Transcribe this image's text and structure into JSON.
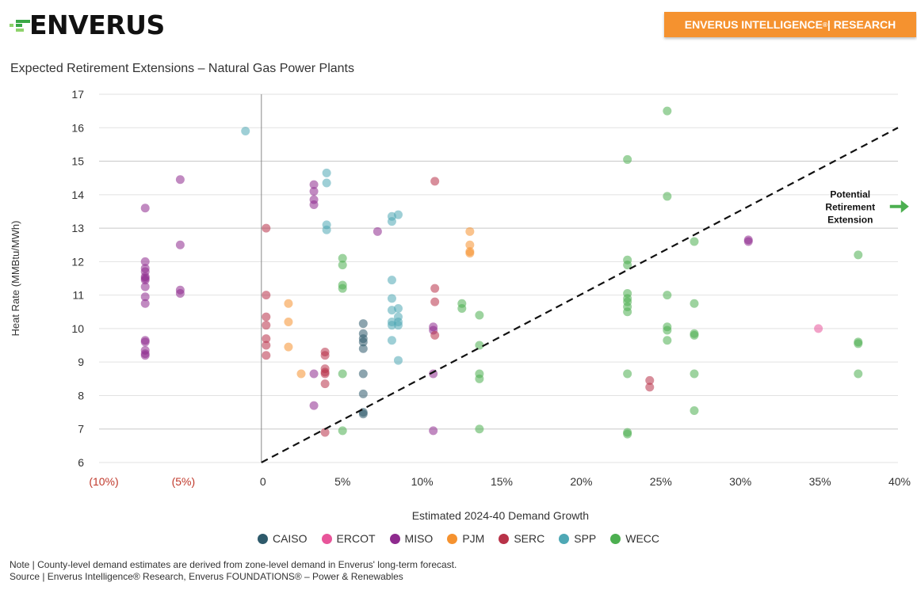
{
  "header": {
    "logo_text": "ENVERUS",
    "badge_text": "ENVERUS INTELLIGENCE",
    "badge_reg": "®",
    "badge_suffix": " | RESEARCH",
    "badge_color": "#f5922f"
  },
  "footer": {
    "note": "Note | County-level demand estimates are derived from zone-level demand in Enverus' long-term forecast.",
    "source": "Source | Enverus Intelligence® Research, Enverus FOUNDATIONS® – Power & Renewables"
  },
  "chart_data": {
    "type": "scatter",
    "title": "Expected Retirement Extensions – Natural Gas Power Plants",
    "xlabel": "Estimated 2024-40 Demand Growth",
    "ylabel": "Heat Rate (MMBtu/MWh)",
    "xlim": [
      -10,
      40
    ],
    "ylim": [
      6,
      17
    ],
    "grid": true,
    "legend_position": "bottom",
    "x_ticks": [
      {
        "value": -10,
        "label": "(10%)",
        "negative": true
      },
      {
        "value": -5,
        "label": "(5%)",
        "negative": true
      },
      {
        "value": 0,
        "label": "0",
        "negative": false
      },
      {
        "value": 5,
        "label": "5%",
        "negative": false
      },
      {
        "value": 10,
        "label": "10%",
        "negative": false
      },
      {
        "value": 15,
        "label": "15%",
        "negative": false
      },
      {
        "value": 20,
        "label": "20%",
        "negative": false
      },
      {
        "value": 25,
        "label": "25%",
        "negative": false
      },
      {
        "value": 30,
        "label": "30%",
        "negative": false
      },
      {
        "value": 35,
        "label": "35%",
        "negative": false
      },
      {
        "value": 40,
        "label": "40%",
        "negative": false
      }
    ],
    "y_ticks": [
      6,
      7,
      8,
      9,
      10,
      11,
      12,
      13,
      14,
      15,
      16,
      17
    ],
    "negative_tick_color": "#c0392b",
    "threshold_line": {
      "style": "dashed",
      "from": [
        0,
        6
      ],
      "to": [
        40,
        16
      ]
    },
    "annotation": {
      "lines": [
        "Potential",
        "Retirement",
        "Extension"
      ],
      "arrow": "right-arrow",
      "arrow_color": "#4caf50",
      "x": 37,
      "y": 13.6
    },
    "series": [
      {
        "name": "CAISO",
        "color": "#2e5a6b",
        "points": [
          [
            6.4,
            10.15
          ],
          [
            6.4,
            9.85
          ],
          [
            6.4,
            9.7
          ],
          [
            6.4,
            9.6
          ],
          [
            6.4,
            9.4
          ],
          [
            6.4,
            8.65
          ],
          [
            6.4,
            8.05
          ],
          [
            6.4,
            7.5
          ],
          [
            6.4,
            7.45
          ]
        ]
      },
      {
        "name": "ERCOT",
        "color": "#e8559a",
        "points": [
          [
            35.0,
            10.0
          ]
        ]
      },
      {
        "name": "MISO",
        "color": "#8e2a8e",
        "points": [
          [
            -7.3,
            13.6
          ],
          [
            -7.3,
            12.0
          ],
          [
            -7.3,
            11.8
          ],
          [
            -7.3,
            11.7
          ],
          [
            -7.3,
            11.55
          ],
          [
            -7.3,
            11.5
          ],
          [
            -7.3,
            11.45
          ],
          [
            -7.3,
            11.25
          ],
          [
            -7.3,
            10.95
          ],
          [
            -7.3,
            10.75
          ],
          [
            -7.3,
            9.65
          ],
          [
            -7.3,
            9.6
          ],
          [
            -7.3,
            9.35
          ],
          [
            -7.3,
            9.2
          ],
          [
            -7.3,
            9.25
          ],
          [
            -5.1,
            14.45
          ],
          [
            -5.1,
            12.5
          ],
          [
            -5.1,
            11.15
          ],
          [
            -5.1,
            11.05
          ],
          [
            3.3,
            14.3
          ],
          [
            3.3,
            14.1
          ],
          [
            3.3,
            13.85
          ],
          [
            3.3,
            13.7
          ],
          [
            3.3,
            8.65
          ],
          [
            3.3,
            7.7
          ],
          [
            7.3,
            12.9
          ],
          [
            10.8,
            10.05
          ],
          [
            10.8,
            9.95
          ],
          [
            10.8,
            8.65
          ],
          [
            10.8,
            6.95
          ],
          [
            30.6,
            12.65
          ],
          [
            30.6,
            12.6
          ]
        ]
      },
      {
        "name": "PJM",
        "color": "#f5922f",
        "points": [
          [
            1.7,
            10.75
          ],
          [
            1.7,
            10.2
          ],
          [
            1.7,
            9.45
          ],
          [
            2.5,
            8.65
          ],
          [
            13.1,
            12.9
          ],
          [
            13.1,
            12.5
          ],
          [
            13.1,
            12.3
          ],
          [
            13.1,
            12.25
          ]
        ]
      },
      {
        "name": "SERC",
        "color": "#b83248",
        "points": [
          [
            0.3,
            13.0
          ],
          [
            0.3,
            11.0
          ],
          [
            0.3,
            10.35
          ],
          [
            0.3,
            10.1
          ],
          [
            0.3,
            9.7
          ],
          [
            0.3,
            9.5
          ],
          [
            0.3,
            9.2
          ],
          [
            4.0,
            9.3
          ],
          [
            4.0,
            9.2
          ],
          [
            4.0,
            8.8
          ],
          [
            4.0,
            8.7
          ],
          [
            4.0,
            8.65
          ],
          [
            4.0,
            8.35
          ],
          [
            4.0,
            6.9
          ],
          [
            10.9,
            14.4
          ],
          [
            10.9,
            11.2
          ],
          [
            10.9,
            10.8
          ],
          [
            10.9,
            9.8
          ],
          [
            24.4,
            8.45
          ],
          [
            24.4,
            8.25
          ]
        ]
      },
      {
        "name": "SPP",
        "color": "#4ea8b5",
        "points": [
          [
            -1.0,
            15.9
          ],
          [
            4.1,
            14.65
          ],
          [
            4.1,
            14.35
          ],
          [
            4.1,
            13.1
          ],
          [
            4.1,
            12.95
          ],
          [
            8.2,
            13.35
          ],
          [
            8.2,
            13.2
          ],
          [
            8.6,
            13.4
          ],
          [
            8.2,
            11.45
          ],
          [
            8.2,
            10.9
          ],
          [
            8.2,
            10.55
          ],
          [
            8.6,
            10.6
          ],
          [
            8.2,
            10.2
          ],
          [
            8.6,
            10.35
          ],
          [
            8.2,
            10.1
          ],
          [
            8.6,
            10.1
          ],
          [
            8.6,
            10.2
          ],
          [
            8.2,
            9.65
          ],
          [
            8.6,
            9.05
          ]
        ]
      },
      {
        "name": "WECC",
        "color": "#4caf50",
        "points": [
          [
            5.1,
            12.1
          ],
          [
            5.1,
            11.9
          ],
          [
            5.1,
            11.3
          ],
          [
            5.1,
            11.2
          ],
          [
            5.1,
            8.65
          ],
          [
            5.1,
            6.95
          ],
          [
            12.6,
            10.75
          ],
          [
            12.6,
            10.6
          ],
          [
            13.7,
            10.4
          ],
          [
            13.7,
            9.5
          ],
          [
            13.7,
            8.65
          ],
          [
            13.7,
            8.5
          ],
          [
            13.7,
            7.0
          ],
          [
            23.0,
            15.05
          ],
          [
            23.0,
            12.05
          ],
          [
            23.0,
            11.9
          ],
          [
            23.0,
            11.05
          ],
          [
            23.0,
            10.9
          ],
          [
            23.0,
            10.8
          ],
          [
            23.0,
            10.65
          ],
          [
            23.0,
            10.5
          ],
          [
            23.0,
            8.65
          ],
          [
            23.0,
            6.9
          ],
          [
            23.0,
            6.85
          ],
          [
            25.5,
            16.5
          ],
          [
            25.5,
            13.95
          ],
          [
            25.5,
            11.0
          ],
          [
            25.5,
            10.05
          ],
          [
            25.5,
            9.95
          ],
          [
            25.5,
            9.65
          ],
          [
            27.2,
            12.6
          ],
          [
            27.2,
            10.75
          ],
          [
            27.2,
            9.85
          ],
          [
            27.2,
            9.8
          ],
          [
            27.2,
            8.65
          ],
          [
            27.2,
            7.55
          ],
          [
            37.5,
            12.2
          ],
          [
            37.5,
            9.6
          ],
          [
            37.5,
            9.55
          ],
          [
            37.5,
            8.65
          ]
        ]
      }
    ]
  }
}
